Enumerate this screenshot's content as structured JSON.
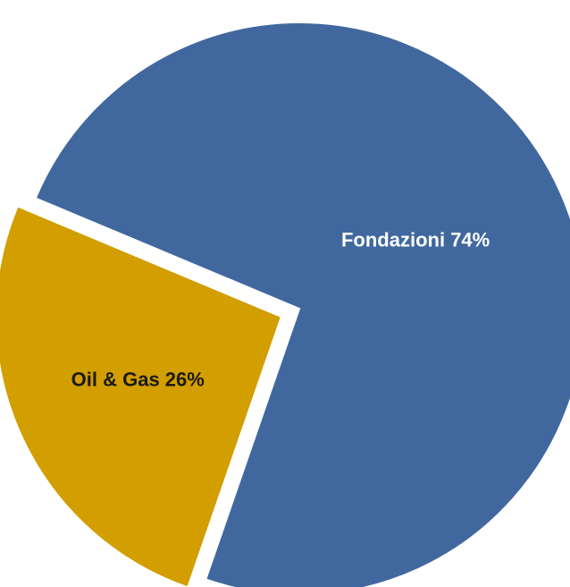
{
  "chart_data": {
    "type": "pie",
    "title": "",
    "slices": [
      {
        "label": "Fondazioni",
        "value": 74,
        "display": "Fondazioni  74%",
        "color": "#41689E",
        "label_color": "#ffffff",
        "exploded": false
      },
      {
        "label": "Oil & Gas",
        "value": 26,
        "display": "Oil & Gas 26%",
        "color": "#D29E00",
        "label_color": "#1a1a1a",
        "exploded": true
      }
    ],
    "legend": "none",
    "background": "#ffffff"
  }
}
